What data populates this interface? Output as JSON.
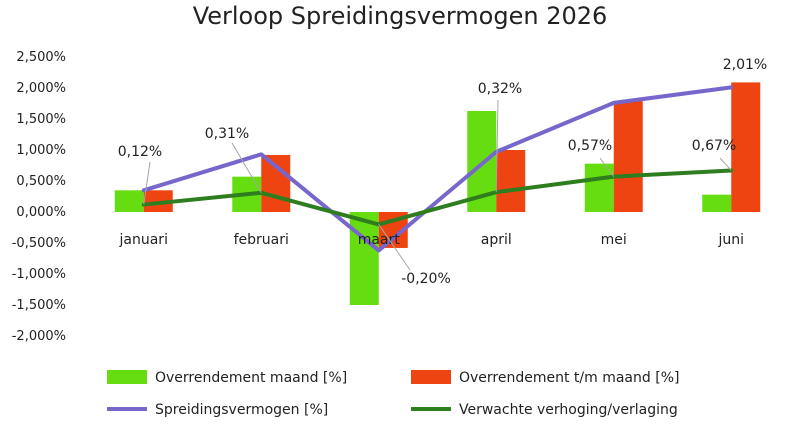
{
  "chart_data": {
    "type": "bar",
    "title": "Verloop Spreidingsvermogen 2026",
    "categories": [
      "januari",
      "februari",
      "maart",
      "april",
      "mei",
      "juni"
    ],
    "y_ticks": [
      "2,500%",
      "2,000%",
      "1,500%",
      "1,000%",
      "0,500%",
      "0,000%",
      "-0,500%",
      "-1,000%",
      "-1,500%",
      "-2,000%"
    ],
    "ylim": [
      -2.0,
      2.5
    ],
    "bar_series": [
      {
        "name": "Overrendement maand [%]",
        "color": "#66dd11",
        "values": [
          0.35,
          0.57,
          -1.5,
          1.63,
          0.78,
          0.28
        ]
      },
      {
        "name": "Overrendement t/m maand [%]",
        "color": "#ee4411",
        "values": [
          0.35,
          0.92,
          -0.58,
          1.0,
          1.79,
          2.09
        ]
      }
    ],
    "line_series": [
      {
        "name": "Spreidingsvermogen [%]",
        "color": "#7766cc",
        "values": [
          0.35,
          0.93,
          -0.62,
          0.97,
          1.76,
          2.01
        ]
      },
      {
        "name": "Verwachte verhoging/verlaging",
        "color": "#2e7d1e",
        "values": [
          0.12,
          0.31,
          -0.2,
          0.32,
          0.57,
          0.67
        ]
      }
    ],
    "data_labels": [
      "0,12%",
      "0,31%",
      "-0,20%",
      "0,32%",
      "0,57%",
      "0,67%",
      "2,01%"
    ],
    "legend_position": "bottom",
    "grid": false
  }
}
